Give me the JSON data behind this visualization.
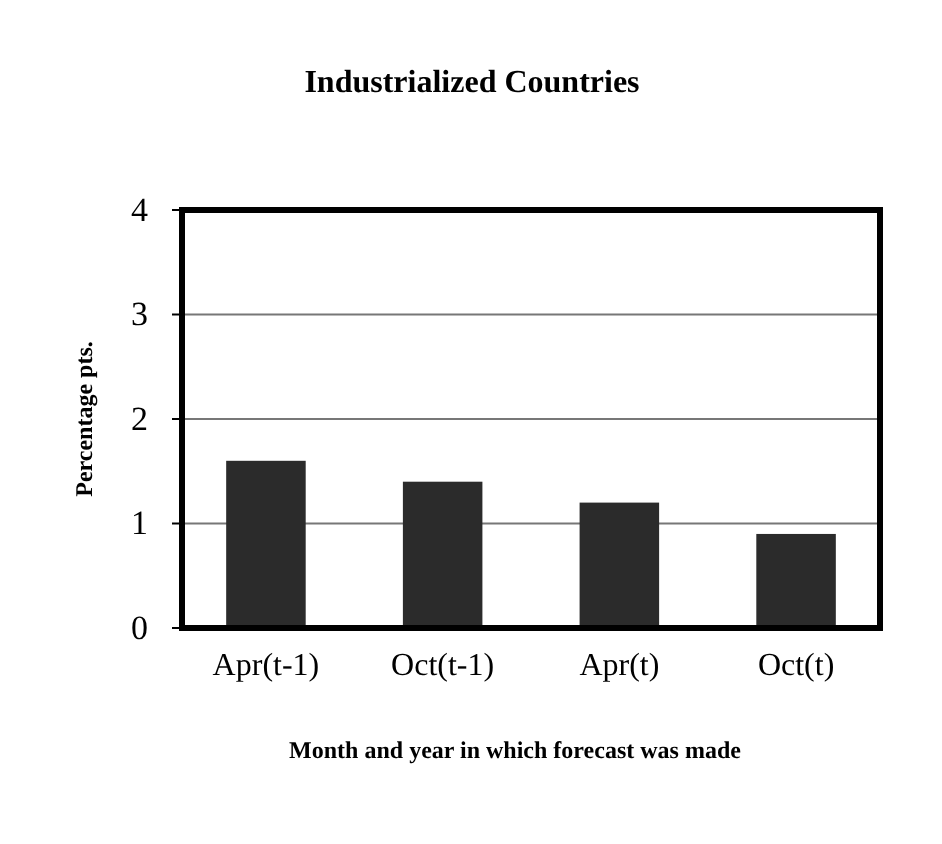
{
  "chart_data": {
    "type": "bar",
    "title": "Industrialized Countries",
    "ylabel": "Percentage pts.",
    "xlabel": "Month and year in which forecast was made",
    "categories": [
      "Apr(t-1)",
      "Oct(t-1)",
      "Apr(t)",
      "Oct(t)"
    ],
    "values": [
      1.6,
      1.4,
      1.2,
      0.9
    ],
    "color": "#2b2b2b",
    "ylim": [
      0,
      4
    ],
    "yticks": [
      0,
      1,
      2,
      3,
      4
    ],
    "grid": "y"
  }
}
